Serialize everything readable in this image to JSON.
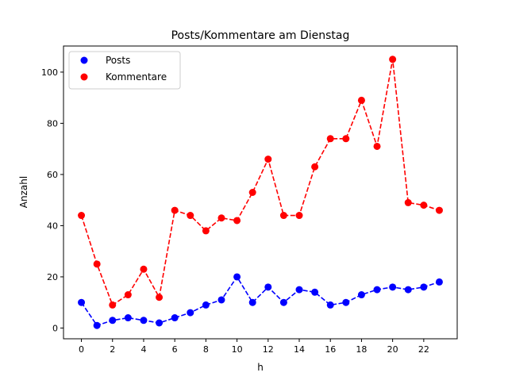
{
  "chart_data": {
    "type": "line",
    "title": "Posts/Kommentare am Dienstag",
    "xlabel": "h",
    "ylabel": "Anzahl",
    "x": [
      0,
      1,
      2,
      3,
      4,
      5,
      6,
      7,
      8,
      9,
      10,
      11,
      12,
      13,
      14,
      15,
      16,
      17,
      18,
      19,
      20,
      21,
      22,
      23
    ],
    "xticks": [
      0,
      2,
      4,
      6,
      8,
      10,
      12,
      14,
      16,
      18,
      20,
      22
    ],
    "yticks": [
      0,
      20,
      40,
      60,
      80,
      100
    ],
    "xlim": [
      -1.15,
      24.15
    ],
    "ylim": [
      -4.2,
      110.2
    ],
    "grid": false,
    "legend_position": "upper left",
    "series": [
      {
        "name": "Posts",
        "color": "#0000ff",
        "style": "dashed-marker-circle",
        "values": [
          10,
          1,
          3,
          4,
          3,
          2,
          4,
          6,
          9,
          11,
          20,
          10,
          16,
          10,
          15,
          14,
          9,
          10,
          13,
          15,
          16,
          15,
          16,
          18
        ]
      },
      {
        "name": "Kommentare",
        "color": "#ff0000",
        "style": "dashed-marker-circle",
        "values": [
          44,
          25,
          9,
          13,
          23,
          12,
          46,
          44,
          38,
          43,
          42,
          53,
          66,
          44,
          44,
          63,
          74,
          74,
          89,
          71,
          105,
          49,
          48,
          46
        ]
      }
    ]
  }
}
